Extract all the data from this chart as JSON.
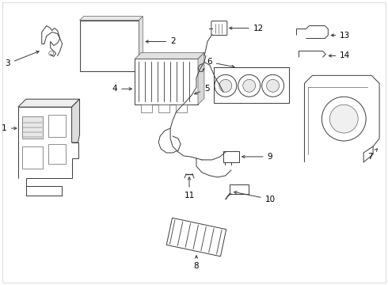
{
  "background_color": "#ffffff",
  "line_color": "#3a3a3a",
  "text_color": "#000000",
  "fig_width": 4.9,
  "fig_height": 3.6,
  "dpi": 100,
  "lw": 0.7,
  "thin_lw": 0.4,
  "fontsize": 7.5,
  "border_color": "#cccccc"
}
